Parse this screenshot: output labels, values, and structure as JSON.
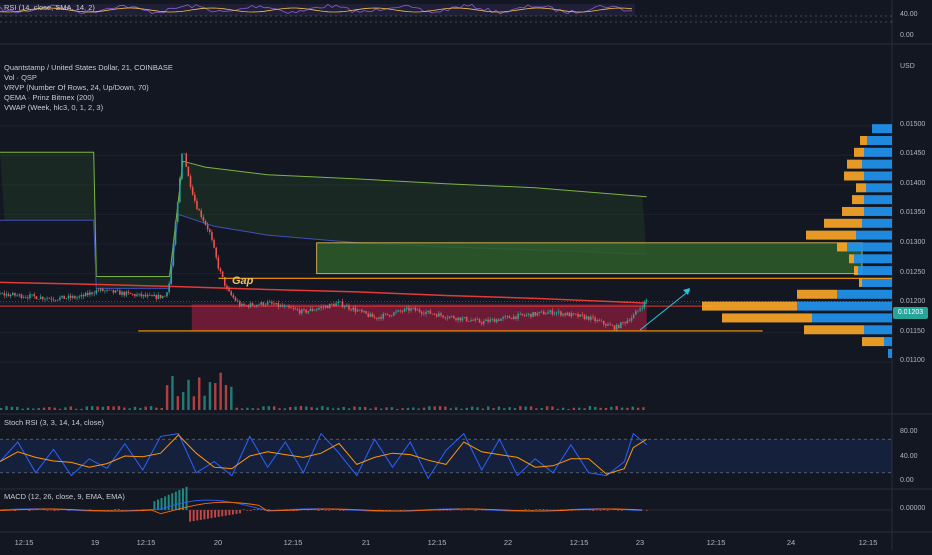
{
  "rsi_top": {
    "label": "RSI (14, close, SMA, 14, 2)",
    "ticks": [
      "40.00",
      "0.00"
    ]
  },
  "main": {
    "title": "Quantstamp / United States Dollar, 21, COINBASE",
    "indicators": [
      "Vol · QSP",
      "VRVP (Number Of Rows, 24, Up/Down, 70)",
      "QEMA · Prinz Bitmex (200)",
      "VWAP (Week, hlc3, 0, 1, 2, 3)"
    ],
    "currency": "USD",
    "gap_label": "Gap",
    "last_price": "0.01203"
  },
  "stoch": {
    "label": "Stoch RSI (3, 3, 14, 14, close)",
    "ticks": [
      "80.00",
      "40.00",
      "0.00"
    ]
  },
  "macd": {
    "label": "MACD (12, 26, close, 9, EMA, EMA)",
    "ticks": [
      "0.00000"
    ]
  },
  "x_axis": [
    "12:15",
    "19",
    "12:15",
    "20",
    "12:15",
    "21",
    "12:15",
    "22",
    "12:15",
    "23",
    "12:15",
    "24",
    "12:15"
  ],
  "colors": {
    "background": "#131722",
    "up": "#26a69a",
    "down": "#ef5350",
    "ema200": "#e53935",
    "vwap_upper": "#7cb342",
    "vwap_mid": "#3f51b5",
    "gap_line": "#ff9800",
    "supply_zone": "#8b1e3f",
    "demand_zone": "#2e5d2a",
    "profile_up": "#2196f3",
    "profile_down": "#ffa726",
    "arrow": "#26c6da"
  },
  "chart_data": {
    "type": "candlestick",
    "symbol": "QSP/USD",
    "timeframe": "21",
    "exchange": "COINBASE",
    "y_ticks": [
      0.015,
      0.0145,
      0.014,
      0.0135,
      0.013,
      0.0125,
      0.012,
      0.0115,
      0.011
    ],
    "y_tick_labels": [
      "0.01500",
      "0.01450",
      "0.01400",
      "0.01350",
      "0.01300",
      "0.01250",
      "0.01200",
      "0.01150",
      "0.01100"
    ],
    "ylim": [
      0.01065,
      0.01535
    ],
    "close_path": [
      [
        0,
        0.01215
      ],
      [
        0.03,
        0.01212
      ],
      [
        0.06,
        0.01208
      ],
      [
        0.09,
        0.0121
      ],
      [
        0.11,
        0.01222
      ],
      [
        0.13,
        0.01218
      ],
      [
        0.15,
        0.01214
      ],
      [
        0.17,
        0.0121
      ],
      [
        0.185,
        0.01212
      ],
      [
        0.19,
        0.01235
      ],
      [
        0.2,
        0.0138
      ],
      [
        0.205,
        0.0147
      ],
      [
        0.21,
        0.0142
      ],
      [
        0.22,
        0.01365
      ],
      [
        0.235,
        0.0132
      ],
      [
        0.245,
        0.0126
      ],
      [
        0.255,
        0.0122
      ],
      [
        0.27,
        0.01195
      ],
      [
        0.3,
        0.012
      ],
      [
        0.34,
        0.01185
      ],
      [
        0.38,
        0.012
      ],
      [
        0.42,
        0.01175
      ],
      [
        0.46,
        0.0119
      ],
      [
        0.5,
        0.01178
      ],
      [
        0.54,
        0.01168
      ],
      [
        0.58,
        0.01178
      ],
      [
        0.62,
        0.01185
      ],
      [
        0.66,
        0.01175
      ],
      [
        0.69,
        0.01158
      ],
      [
        0.71,
        0.01178
      ],
      [
        0.725,
        0.01205
      ]
    ],
    "ema200": [
      [
        0,
        0.01235
      ],
      [
        0.1,
        0.01232
      ],
      [
        0.2,
        0.01228
      ],
      [
        0.3,
        0.01223
      ],
      [
        0.4,
        0.01219
      ],
      [
        0.5,
        0.01213
      ],
      [
        0.6,
        0.01208
      ],
      [
        0.725,
        0.012
      ]
    ],
    "vwap_upper": [
      [
        0,
        0.01455
      ],
      [
        0.105,
        0.01455
      ],
      [
        0.108,
        0.01245
      ],
      [
        0.19,
        0.01245
      ],
      [
        0.205,
        0.0144
      ],
      [
        0.23,
        0.0143
      ],
      [
        0.3,
        0.01417
      ],
      [
        0.4,
        0.0141
      ],
      [
        0.5,
        0.01402
      ],
      [
        0.6,
        0.01395
      ],
      [
        0.725,
        0.0138
      ]
    ],
    "vwap_mid": [
      [
        0,
        0.0134
      ],
      [
        0.105,
        0.0134
      ],
      [
        0.108,
        0.01225
      ],
      [
        0.19,
        0.01225
      ],
      [
        0.2,
        0.0135
      ],
      [
        0.24,
        0.0133
      ],
      [
        0.3,
        0.01315
      ],
      [
        0.4,
        0.01302
      ],
      [
        0.5,
        0.01295
      ],
      [
        0.6,
        0.0129
      ],
      [
        0.725,
        0.01283
      ]
    ],
    "gap_zone": {
      "x_range": [
        0.355,
        1.0
      ],
      "y_range": [
        0.0125,
        0.01302
      ]
    },
    "supply_zone": {
      "x_range": [
        0.215,
        0.725
      ],
      "y_range": [
        0.01153,
        0.01198
      ]
    },
    "gap_line": {
      "x_range": [
        0.245,
        1.0
      ],
      "y": 0.01242
    },
    "support_line": {
      "x_range": [
        0.155,
        0.855
      ],
      "y": 0.01153
    },
    "volume_profile": [
      {
        "price": 0.01495,
        "up": 20,
        "down": 0
      },
      {
        "price": 0.01475,
        "up": 25,
        "down": 7
      },
      {
        "price": 0.01455,
        "up": 28,
        "down": 10
      },
      {
        "price": 0.01435,
        "up": 30,
        "down": 15
      },
      {
        "price": 0.01415,
        "up": 28,
        "down": 20
      },
      {
        "price": 0.01395,
        "up": 26,
        "down": 10
      },
      {
        "price": 0.01375,
        "up": 28,
        "down": 12
      },
      {
        "price": 0.01355,
        "up": 28,
        "down": 22
      },
      {
        "price": 0.01335,
        "up": 30,
        "down": 38
      },
      {
        "price": 0.01315,
        "up": 36,
        "down": 50
      },
      {
        "price": 0.01295,
        "up": 45,
        "down": 10
      },
      {
        "price": 0.01275,
        "up": 38,
        "down": 5
      },
      {
        "price": 0.01255,
        "up": 34,
        "down": 4
      },
      {
        "price": 0.01235,
        "up": 30,
        "down": 3
      },
      {
        "price": 0.01215,
        "up": 55,
        "down": 40
      },
      {
        "price": 0.01195,
        "up": 95,
        "down": 95
      },
      {
        "price": 0.01175,
        "up": 80,
        "down": 90
      },
      {
        "price": 0.01155,
        "up": 28,
        "down": 60
      },
      {
        "price": 0.01135,
        "up": 8,
        "down": 22
      },
      {
        "price": 0.01115,
        "up": 4,
        "down": 0
      }
    ],
    "stoch_rsi": {
      "k": [
        [
          0,
          40
        ],
        [
          0.02,
          75
        ],
        [
          0.04,
          20
        ],
        [
          0.06,
          62
        ],
        [
          0.08,
          15
        ],
        [
          0.1,
          45
        ],
        [
          0.12,
          28
        ],
        [
          0.14,
          72
        ],
        [
          0.16,
          25
        ],
        [
          0.18,
          85
        ],
        [
          0.2,
          90
        ],
        [
          0.22,
          20
        ],
        [
          0.24,
          40
        ],
        [
          0.26,
          15
        ],
        [
          0.28,
          85
        ],
        [
          0.3,
          30
        ],
        [
          0.32,
          75
        ],
        [
          0.34,
          20
        ],
        [
          0.36,
          90
        ],
        [
          0.38,
          55
        ],
        [
          0.4,
          15
        ],
        [
          0.42,
          80
        ],
        [
          0.44,
          30
        ],
        [
          0.46,
          75
        ],
        [
          0.48,
          10
        ],
        [
          0.5,
          60
        ],
        [
          0.52,
          90
        ],
        [
          0.54,
          25
        ],
        [
          0.56,
          80
        ],
        [
          0.58,
          15
        ],
        [
          0.6,
          45
        ],
        [
          0.62,
          20
        ],
        [
          0.64,
          70
        ],
        [
          0.66,
          20
        ],
        [
          0.68,
          15
        ],
        [
          0.7,
          40
        ],
        [
          0.71,
          90
        ],
        [
          0.725,
          70
        ]
      ],
      "ylim": [
        0,
        100
      ],
      "bands": [
        20,
        80
      ]
    },
    "macd": {
      "hist_x_range": [
        0,
        0.725
      ],
      "spike_x": 0.205,
      "ylim": [
        -1,
        1
      ]
    }
  }
}
